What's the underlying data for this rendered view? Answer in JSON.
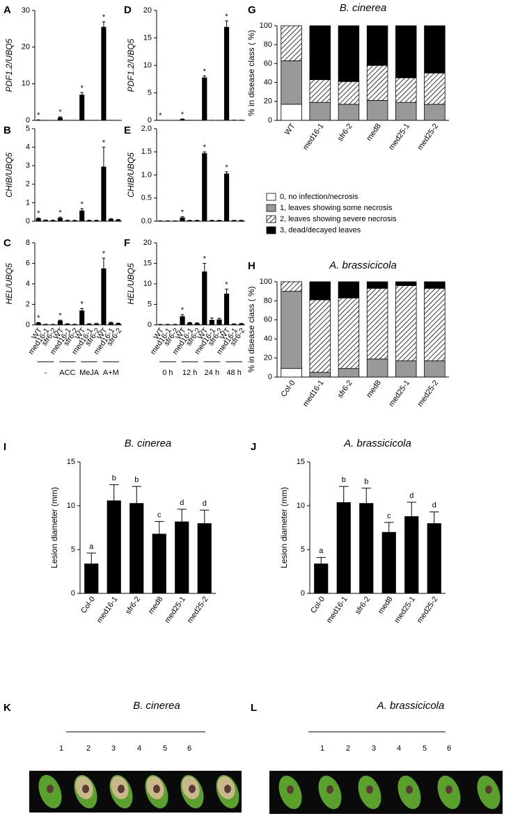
{
  "chart_data": [
    {
      "type": "bar",
      "panel": "A",
      "y_label": "PDF1.2/UBQ5",
      "color": "#000000",
      "values": [
        0.1,
        0.02,
        0.02,
        0.8,
        0.02,
        0.02,
        7.0,
        0.02,
        0.02,
        25.5,
        0.02,
        0.02
      ],
      "errors": [
        0.05,
        0,
        0,
        0.2,
        0,
        0,
        0.6,
        0,
        0,
        1.4,
        0,
        0
      ],
      "annotations": [
        "*",
        null,
        null,
        "*",
        null,
        null,
        "*",
        null,
        null,
        "*",
        null,
        null
      ],
      "ylim": [
        0,
        30
      ],
      "yticks": [
        0,
        10,
        20,
        30
      ]
    },
    {
      "type": "bar",
      "panel": "B",
      "y_label": "CHIB/UBQ5",
      "color": "#000000",
      "values": [
        0.15,
        0.06,
        0.05,
        0.18,
        0.05,
        0.04,
        0.58,
        0.05,
        0.04,
        2.95,
        0.12,
        0.08
      ],
      "errors": [
        0.03,
        0.01,
        0.01,
        0.04,
        0.01,
        0.01,
        0.1,
        0.01,
        0.01,
        1.05,
        0.02,
        0.02
      ],
      "annotations": [
        "*",
        null,
        null,
        "*",
        null,
        null,
        "*",
        null,
        null,
        "*",
        null,
        null
      ],
      "ylim": [
        0,
        5
      ],
      "yticks": [
        0,
        1,
        2,
        3,
        4,
        5
      ]
    },
    {
      "type": "bar",
      "panel": "C",
      "y_label": "HEL/UBQ5",
      "color": "#000000",
      "categories": [
        "WT",
        "med16-1",
        "sfr6-2",
        "WT",
        "med16-1",
        "sfr6-2",
        "WT",
        "med16-1",
        "sfr6-2",
        "WT",
        "med16-1",
        "sfr6-2"
      ],
      "groups": [
        "-",
        "ACC",
        "MeJA",
        "A+M"
      ],
      "values": [
        0.2,
        0.06,
        0.05,
        0.42,
        0.1,
        0.06,
        1.4,
        0.1,
        0.12,
        5.5,
        0.22,
        0.15
      ],
      "errors": [
        0.04,
        0.01,
        0.01,
        0.05,
        0.02,
        0.01,
        0.2,
        0.02,
        0.02,
        1.0,
        0.04,
        0.03
      ],
      "annotations": [
        "*",
        null,
        null,
        "*",
        null,
        null,
        "*",
        null,
        null,
        "*",
        null,
        null
      ],
      "ylim": [
        0,
        8
      ],
      "yticks": [
        0,
        2,
        4,
        6,
        8
      ]
    },
    {
      "type": "bar",
      "panel": "D",
      "y_label": "PDF1.2/UBQ5",
      "color": "#000000",
      "values": [
        0.02,
        0.01,
        0.01,
        0.2,
        0.02,
        0.02,
        7.8,
        0.02,
        0.02,
        17,
        0.05,
        0.04
      ],
      "errors": [
        0,
        0,
        0,
        0.05,
        0,
        0,
        0.3,
        0,
        0,
        1.1,
        0,
        0
      ],
      "annotations": [
        "*",
        null,
        null,
        "*",
        null,
        null,
        "*",
        null,
        null,
        "*",
        null,
        null
      ],
      "ylim": [
        0,
        20
      ],
      "yticks": [
        0,
        5,
        10,
        15,
        20
      ]
    },
    {
      "type": "bar",
      "panel": "E",
      "y_label": "CHIB/UBQ5",
      "color": "#000000",
      "values": [
        0.01,
        0.01,
        0.01,
        0.08,
        0.02,
        0.02,
        1.47,
        0.02,
        0.02,
        1.03,
        0.02,
        0.02
      ],
      "errors": [
        0,
        0,
        0,
        0.02,
        0,
        0,
        0.03,
        0,
        0,
        0.04,
        0,
        0
      ],
      "annotations": [
        null,
        null,
        null,
        "*",
        null,
        null,
        "*",
        null,
        null,
        "*",
        null,
        null
      ],
      "ylim": [
        0,
        2
      ],
      "yticks": [
        {
          "value": 0,
          "label": "0.0"
        },
        {
          "value": 0.5,
          "label": "0.5"
        },
        {
          "value": 1,
          "label": "1.0"
        },
        {
          "value": 1.5,
          "label": "1.5"
        },
        {
          "value": 2,
          "label": "2.0"
        }
      ]
    },
    {
      "type": "bar",
      "panel": "F",
      "y_label": "HEL/UBQ5",
      "color": "#000000",
      "categories": [
        "WT",
        "med16-1",
        "sfr6-2",
        "WT",
        "med16-1",
        "sfr6-2",
        "WT",
        "med16-1",
        "sfr6-2",
        "WT",
        "med16-1",
        "sfr6-2"
      ],
      "groups": [
        "0 h",
        "12 h",
        "24 h",
        "48 h"
      ],
      "values": [
        0.1,
        0.1,
        0.1,
        2.1,
        0.5,
        0.4,
        13,
        1.2,
        1.3,
        7.6,
        0.2,
        0.3
      ],
      "errors": [
        0.05,
        0.05,
        0.05,
        0.4,
        0.1,
        0.1,
        2.0,
        0.5,
        0.3,
        1.1,
        0.05,
        0.05
      ],
      "annotations": [
        null,
        null,
        null,
        "*",
        null,
        null,
        "*",
        null,
        null,
        "*",
        null,
        null
      ],
      "ylim": [
        0,
        20
      ],
      "yticks": [
        0,
        5,
        10,
        15,
        20
      ]
    },
    {
      "type": "stacked_bar",
      "panel": "G",
      "title": "B. cinerea",
      "y_label": "% in disease class ( %)",
      "categories": [
        "WT",
        "med16-1",
        "sfr6-2",
        "med8",
        "med25-1",
        "med25-2"
      ],
      "series": [
        {
          "name": "0, no infection/necrosis",
          "color": "#ffffff",
          "values": [
            17,
            0,
            0,
            0,
            0,
            0
          ]
        },
        {
          "name": "1, leaves showing some necrosis",
          "color": "#999999",
          "values": [
            46,
            19,
            17,
            21,
            19,
            17
          ]
        },
        {
          "name": "2, leaves showing severe necrosis",
          "color": "#ffffff",
          "hatch": true,
          "values": [
            37,
            24,
            24,
            37,
            26,
            33
          ]
        },
        {
          "name": "3, dead/decayed leaves",
          "color": "#000000",
          "values": [
            0,
            57,
            59,
            42,
            55,
            50
          ]
        }
      ],
      "ylim": [
        0,
        100
      ],
      "yticks": [
        0,
        20,
        40,
        60,
        80,
        100
      ]
    },
    {
      "type": "stacked_bar",
      "panel": "H",
      "title": "A. brassicicola",
      "y_label": "% in disease class ( %)",
      "categories": [
        "Col-0",
        "med16-1",
        "sfr6-2",
        "med8",
        "med25-1",
        "med25-2"
      ],
      "series": [
        {
          "color": "#ffffff",
          "values": [
            9,
            0,
            0,
            0,
            0,
            0
          ]
        },
        {
          "color": "#999999",
          "values": [
            81,
            5,
            9,
            19,
            17,
            17
          ]
        },
        {
          "color": "#ffffff",
          "hatch": true,
          "values": [
            10,
            76,
            74,
            74,
            79,
            76
          ]
        },
        {
          "color": "#000000",
          "values": [
            0,
            19,
            17,
            7,
            4,
            7
          ]
        }
      ],
      "ylim": [
        0,
        100
      ],
      "yticks": [
        0,
        20,
        40,
        60,
        80,
        100
      ]
    },
    {
      "type": "bar",
      "panel": "I",
      "title": "B. cinerea",
      "y_label": "Lesion diameter (mm)",
      "color": "#000000",
      "categories": [
        "Col-0",
        "med16-1",
        "sfr6-2",
        "med8",
        "med25-1",
        "med25-2"
      ],
      "values": [
        3.4,
        10.6,
        10.3,
        6.8,
        8.2,
        8.0
      ],
      "errors": [
        1.2,
        1.8,
        1.9,
        1.4,
        1.4,
        1.5
      ],
      "annotations": [
        "a",
        "b",
        "b",
        "c",
        "d",
        "d"
      ],
      "ylim": [
        0,
        15
      ],
      "yticks": [
        0,
        5,
        10,
        15
      ]
    },
    {
      "type": "bar",
      "panel": "J",
      "title": "A. brassicicola",
      "y_label": "Lesion diameter (mm)",
      "color": "#000000",
      "categories": [
        "Col-0",
        "med16-1",
        "sfr6-2",
        "med8",
        "med25-1",
        "med25-2"
      ],
      "values": [
        3.4,
        10.4,
        10.3,
        7.0,
        8.8,
        8.0
      ],
      "errors": [
        0.7,
        1.8,
        1.7,
        1.1,
        1.6,
        1.3
      ],
      "annotations": [
        "a",
        "b",
        "b",
        "c",
        "d",
        "d"
      ],
      "ylim": [
        0,
        15
      ],
      "yticks": [
        0,
        5,
        10,
        15
      ]
    }
  ],
  "photos": [
    {
      "panel": "K",
      "title": "B. cinerea",
      "labels": [
        "1",
        "2",
        "3",
        "4",
        "5",
        "6"
      ]
    },
    {
      "panel": "L",
      "title": "A. brassicicola",
      "labels": [
        "1",
        "2",
        "3",
        "4",
        "5",
        "6"
      ]
    }
  ]
}
